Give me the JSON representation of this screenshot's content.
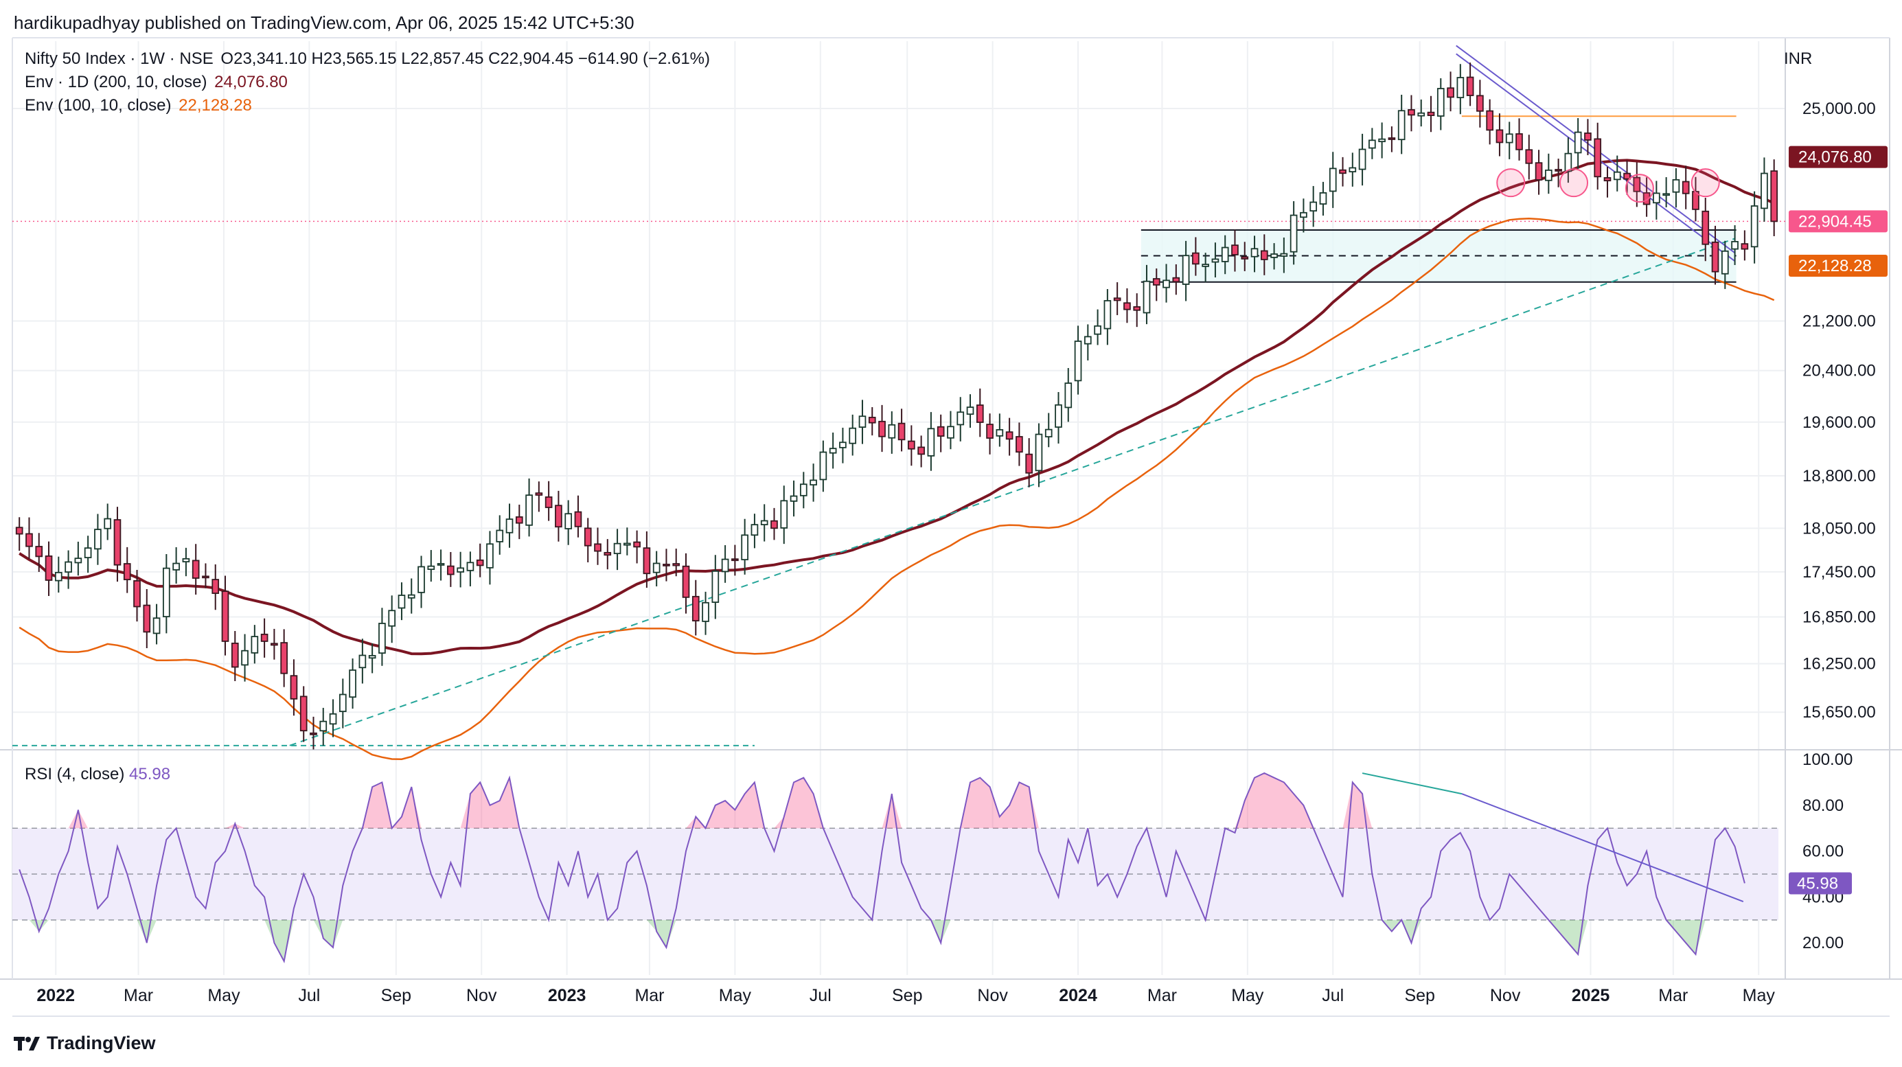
{
  "header": {
    "publisher": "hardikupadhyay published on TradingView.com, Apr 06, 2025 15:42 UTC+5:30",
    "symbol": "Nifty 50 Index · 1W · NSE",
    "ohlc": "O23,341.10 H23,565.15 L22,857.45 C22,904.45 −614.90 (−2.61%)",
    "env1_label": "Env · 1D (200, 10, close)",
    "env1_value": "24,076.80",
    "env2_label": "Env (100, 10, close)",
    "env2_value": "22,128.28",
    "currency": "INR"
  },
  "rsi_header": {
    "label": "RSI (4, close)",
    "value": "45.98"
  },
  "footer": {
    "brand": "TradingView"
  },
  "colors": {
    "up": "#ffffff",
    "upBorder": "#1b3a2f",
    "down": "#e8426b",
    "downBorder": "#3a1720",
    "env200": "#7b1522",
    "env100": "#e8620c",
    "trend": "#26a69a",
    "downtrend": "#6a5acd",
    "rsi": "#7e57c2",
    "lastPrice": "#f7578c"
  },
  "chart_data": [
    {
      "type": "candlestick",
      "title": "Nifty 50 Index · 1W · NSE",
      "y_scale": "log",
      "yticks": [
        "25,000.00",
        "21,200.00",
        "20,400.00",
        "19,600.00",
        "18,800.00",
        "18,050.00",
        "17,450.00",
        "16,850.00",
        "16,250.00",
        "15,650.00"
      ],
      "ytick_values": [
        25000,
        21200,
        20400,
        19600,
        18800,
        18050,
        17450,
        16850,
        16250,
        15650
      ],
      "ylim": [
        15200,
        26200
      ],
      "xticks": [
        "2022",
        "Mar",
        "May",
        "Jul",
        "Sep",
        "Nov",
        "2023",
        "Mar",
        "May",
        "Jul",
        "Sep",
        "Nov",
        "2024",
        "Mar",
        "May",
        "Jul",
        "Sep",
        "Nov",
        "2025",
        "Mar",
        "May"
      ],
      "xtick_bold": [
        true,
        false,
        false,
        false,
        false,
        false,
        true,
        false,
        false,
        false,
        false,
        false,
        true,
        false,
        false,
        false,
        false,
        false,
        true,
        false,
        false
      ],
      "xlim": [
        "2021-12-01",
        "2025-05-20"
      ],
      "xtick_dates": [
        "2022-01-01",
        "2022-03-01",
        "2022-05-01",
        "2022-07-01",
        "2022-09-01",
        "2022-11-01",
        "2023-01-01",
        "2023-03-01",
        "2023-05-01",
        "2023-07-01",
        "2023-09-01",
        "2023-11-01",
        "2024-01-01",
        "2024-03-01",
        "2024-05-01",
        "2024-07-01",
        "2024-09-01",
        "2024-11-01",
        "2025-01-01",
        "2025-03-01",
        "2025-05-01"
      ],
      "price_labels": [
        {
          "text": "24,076.80",
          "value": 24076.8,
          "color": "#7b1522"
        },
        {
          "text": "22,904.45",
          "value": 22904.45,
          "color": "#f7578c"
        },
        {
          "text": "22,128.28",
          "value": 22128.28,
          "color": "#e8620c"
        }
      ],
      "close_path": {
        "start": "2021-12-06",
        "step_days": 7,
        "key_points": [
          [
            0,
            17900
          ],
          [
            4,
            17350
          ],
          [
            6,
            17700
          ],
          [
            9,
            18100
          ],
          [
            11,
            17300
          ],
          [
            13,
            16600
          ],
          [
            15,
            17400
          ],
          [
            17,
            17650
          ],
          [
            20,
            17100
          ],
          [
            22,
            16200
          ],
          [
            25,
            16700
          ],
          [
            28,
            15800
          ],
          [
            30,
            15300
          ],
          [
            33,
            15900
          ],
          [
            36,
            16500
          ],
          [
            40,
            17300
          ],
          [
            43,
            17600
          ],
          [
            45,
            17400
          ],
          [
            48,
            17800
          ],
          [
            51,
            18300
          ],
          [
            53,
            18500
          ],
          [
            55,
            18200
          ],
          [
            57,
            18050
          ],
          [
            60,
            17600
          ],
          [
            62,
            18000
          ],
          [
            64,
            17400
          ],
          [
            66,
            17700
          ],
          [
            68,
            17100
          ],
          [
            69,
            16850
          ],
          [
            72,
            17600
          ],
          [
            75,
            18050
          ],
          [
            78,
            18300
          ],
          [
            80,
            18700
          ],
          [
            82,
            19000
          ],
          [
            84,
            19400
          ],
          [
            86,
            19600
          ],
          [
            88,
            19550
          ],
          [
            91,
            19200
          ],
          [
            94,
            19400
          ],
          [
            96,
            19800
          ],
          [
            99,
            19500
          ],
          [
            101,
            19300
          ],
          [
            103,
            19000
          ],
          [
            105,
            19500
          ],
          [
            106,
            19900
          ],
          [
            108,
            20700
          ],
          [
            111,
            21500
          ],
          [
            113,
            21400
          ],
          [
            115,
            21700
          ],
          [
            117,
            21900
          ],
          [
            120,
            22200
          ],
          [
            123,
            22300
          ],
          [
            125,
            22400
          ],
          [
            127,
            22200
          ],
          [
            129,
            22500
          ],
          [
            131,
            23100
          ],
          [
            133,
            23500
          ],
          [
            136,
            24000
          ],
          [
            138,
            24300
          ],
          [
            140,
            24600
          ],
          [
            142,
            24900
          ],
          [
            144,
            25000
          ],
          [
            146,
            25300
          ],
          [
            147,
            25700
          ],
          [
            149,
            24800
          ],
          [
            151,
            24500
          ],
          [
            153,
            24200
          ],
          [
            155,
            23800
          ],
          [
            156,
            23600
          ],
          [
            158,
            24200
          ],
          [
            159,
            24600
          ],
          [
            161,
            23800
          ],
          [
            163,
            23700
          ],
          [
            165,
            23500
          ],
          [
            167,
            23200
          ],
          [
            169,
            23700
          ],
          [
            170,
            23500
          ],
          [
            171,
            22900
          ],
          [
            172,
            22600
          ],
          [
            173,
            22100
          ],
          [
            174,
            22350
          ],
          [
            176,
            22500
          ],
          [
            177,
            23300
          ],
          [
            178,
            23600
          ],
          [
            179,
            22904
          ]
        ]
      },
      "overlays": [
        {
          "name": "Env · 1D (200, 10, close)",
          "color": "#7b1522",
          "value": 24076.8
        },
        {
          "name": "Env (100, 10, close)",
          "color": "#e8620c",
          "value": 22128.28
        }
      ],
      "levels": [
        {
          "type": "range-box",
          "top": 22750,
          "bottom": 21850,
          "mid": 22300,
          "from": "2024-02-15",
          "to": "2025-04-15"
        },
        {
          "type": "horizontal",
          "value": 24850,
          "from": "2024-10-01",
          "to": "2025-04-15",
          "color": "#ff9a3c"
        },
        {
          "type": "horizontal",
          "value": 15250,
          "from": "2021-12-01",
          "to": "2023-05-15",
          "style": "dashed",
          "color": "#26a69a"
        }
      ],
      "trendlines": [
        {
          "style": "dashed",
          "color": "#26a69a",
          "from": [
            "2022-06-17",
            15250
          ],
          "to": [
            "2025-04-14",
            22600
          ]
        },
        {
          "style": "solid",
          "color": "#6a5acd",
          "from": [
            "2024-09-27",
            26250
          ],
          "to": [
            "2025-04-14",
            22350
          ]
        }
      ]
    },
    {
      "type": "line",
      "title": "RSI (4, close)",
      "yticks": [
        "100.00",
        "80.00",
        "60.00",
        "40.00",
        "20.00"
      ],
      "ytick_values": [
        100,
        80,
        60,
        40,
        20
      ],
      "ylim": [
        6,
        100
      ],
      "bands": {
        "upper": 70,
        "middle": 50,
        "lower": 30
      },
      "last_value": 45.98,
      "series": [
        {
          "start": "2021-12-06",
          "step_days": 7,
          "values": [
            52,
            40,
            25,
            35,
            50,
            60,
            78,
            55,
            35,
            40,
            62,
            50,
            35,
            20,
            45,
            65,
            70,
            55,
            40,
            35,
            55,
            60,
            72,
            60,
            45,
            40,
            20,
            12,
            35,
            50,
            40,
            22,
            18,
            45,
            60,
            70,
            88,
            90,
            70,
            75,
            88,
            65,
            50,
            40,
            55,
            45,
            85,
            90,
            80,
            82,
            92,
            70,
            55,
            40,
            30,
            55,
            45,
            60,
            40,
            50,
            30,
            35,
            55,
            60,
            45,
            25,
            18,
            35,
            60,
            75,
            70,
            80,
            82,
            78,
            85,
            90,
            70,
            60,
            75,
            90,
            92,
            85,
            70,
            60,
            50,
            40,
            35,
            30,
            60,
            85,
            55,
            45,
            35,
            30,
            20,
            45,
            70,
            90,
            92,
            88,
            75,
            80,
            90,
            88,
            60,
            50,
            40,
            65,
            55,
            70,
            45,
            50,
            40,
            50,
            62,
            70,
            55,
            40,
            60,
            50,
            40,
            30,
            50,
            70,
            68,
            82,
            92,
            94,
            92,
            90,
            85,
            80,
            70,
            60,
            50,
            40,
            90,
            85,
            50,
            30,
            25,
            30,
            20,
            35,
            40,
            60,
            65,
            68,
            60,
            40,
            30,
            35,
            50,
            45,
            40,
            35,
            30,
            25,
            20,
            15,
            45,
            65,
            70,
            55,
            45,
            50,
            60,
            40,
            30,
            25,
            20,
            15,
            40,
            65,
            70,
            62,
            46
          ]
        }
      ]
    }
  ]
}
